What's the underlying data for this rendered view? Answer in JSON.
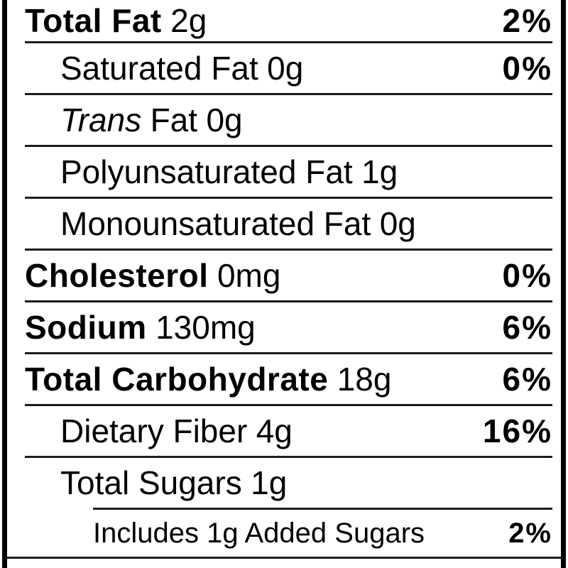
{
  "panel": {
    "type": "nutrition-facts-label-section",
    "colors": {
      "background": "#ffffff",
      "text": "#000000",
      "rule": "#1c1c1c",
      "border": "#000000"
    },
    "rows": [
      {
        "label": "Total Fat",
        "style": "bold",
        "amount": "2g",
        "percent": "2%",
        "indent": 0
      },
      {
        "label": "Saturated Fat",
        "style": "regular",
        "amount": "0g",
        "percent": "0%",
        "indent": 1
      },
      {
        "lead_italic": "Trans",
        "label": "Fat",
        "style": "regular",
        "amount": "0g",
        "percent": "",
        "indent": 1
      },
      {
        "label": "Polyunsaturated Fat",
        "style": "regular",
        "amount": "1g",
        "percent": "",
        "indent": 1
      },
      {
        "label": "Monounsaturated Fat",
        "style": "regular",
        "amount": "0g",
        "percent": "",
        "indent": 1
      },
      {
        "label": "Cholesterol",
        "style": "bold",
        "amount": "0mg",
        "percent": "0%",
        "indent": 0
      },
      {
        "label": "Sodium",
        "style": "bold",
        "amount": "130mg",
        "percent": "6%",
        "indent": 0
      },
      {
        "label": "Total Carbohydrate",
        "style": "bold",
        "amount": "18g",
        "percent": "6%",
        "indent": 0
      },
      {
        "label": "Dietary Fiber",
        "style": "regular",
        "amount": "4g",
        "percent": "16%",
        "indent": 1
      },
      {
        "label": "Total Sugars",
        "style": "regular",
        "amount": "1g",
        "percent": "",
        "indent": 1
      },
      {
        "label": "Includes 1g Added Sugars",
        "style": "regular",
        "amount": "",
        "percent": "2%",
        "indent": 2,
        "rule_indented": true,
        "size": "small"
      }
    ]
  }
}
